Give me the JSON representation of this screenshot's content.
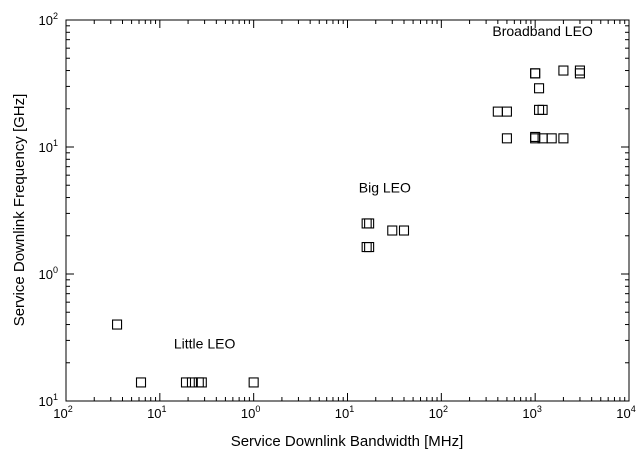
{
  "chart_data": {
    "type": "scatter",
    "title": "",
    "xlabel": "Service Downlink Bandwidth [MHz]",
    "ylabel": "Service Downlink Frequency [GHz]",
    "xscale": "log",
    "yscale": "log",
    "xlim": [
      0.01,
      10000
    ],
    "ylim": [
      0.1,
      100
    ],
    "grid": false,
    "legend": "none",
    "marker": "open-square",
    "x_ticks": [
      {
        "base": "10",
        "exp": "2"
      },
      {
        "base": "10",
        "exp": "1"
      },
      {
        "base": "10",
        "exp": "0"
      },
      {
        "base": "10",
        "exp": "1"
      },
      {
        "base": "10",
        "exp": "2"
      },
      {
        "base": "10",
        "exp": "3"
      },
      {
        "base": "10",
        "exp": "4"
      }
    ],
    "y_ticks": [
      {
        "base": "10",
        "exp": "1"
      },
      {
        "base": "10",
        "exp": "0"
      },
      {
        "base": "10",
        "exp": "1"
      },
      {
        "base": "10",
        "exp": "2"
      }
    ],
    "annotations": [
      {
        "text": "Little LEO",
        "x": 0.3,
        "y": 0.26
      },
      {
        "text": "Big LEO",
        "x": 25,
        "y": 4.4
      },
      {
        "text": "Broadband LEO",
        "x": 1200,
        "y": 75
      }
    ],
    "x": [
      0.035,
      0.063,
      0.19,
      0.22,
      0.26,
      0.28,
      1.0,
      16,
      17,
      16,
      17,
      30,
      40,
      400,
      500,
      500,
      1000,
      1000,
      1100,
      1000,
      1000,
      1200,
      1100,
      1200,
      1500,
      2000,
      2000,
      3000,
      3000
    ],
    "y": [
      0.4,
      0.14,
      0.14,
      0.14,
      0.14,
      0.14,
      0.14,
      1.63,
      1.63,
      2.5,
      2.5,
      2.2,
      2.2,
      19,
      19,
      11.7,
      38,
      38,
      29,
      12,
      11.7,
      19.6,
      19.6,
      11.7,
      11.7,
      11.7,
      40,
      40,
      38
    ]
  }
}
